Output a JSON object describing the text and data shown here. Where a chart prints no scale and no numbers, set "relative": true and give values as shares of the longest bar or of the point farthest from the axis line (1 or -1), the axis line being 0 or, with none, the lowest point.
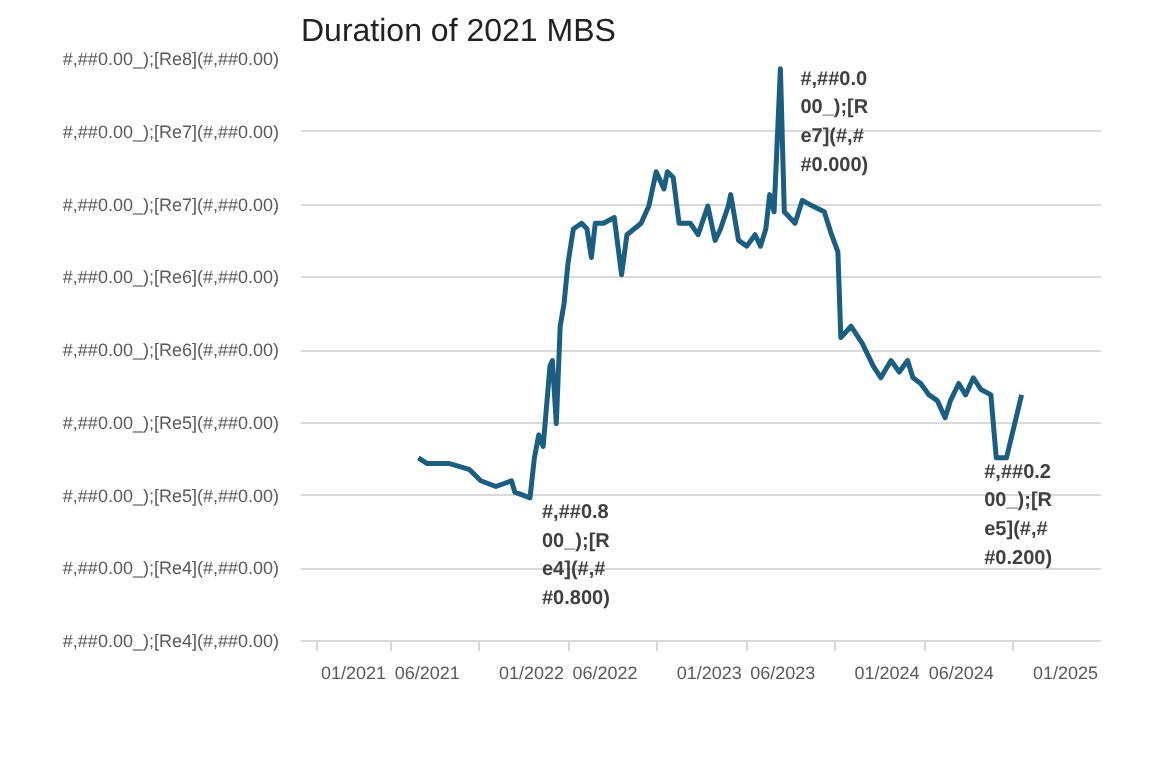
{
  "chart_data": {
    "type": "line",
    "title": "Duration of 2021 MBS",
    "relative": true,
    "grid": "y",
    "line_style": "solid",
    "marker": "none",
    "xlim": [
      "2020-09-15",
      "2025-03-15"
    ],
    "xticks": [
      {
        "value": "2021-01",
        "label": "01/2021"
      },
      {
        "value": "2021-06",
        "label": "06/2021"
      },
      {
        "value": "2022-01",
        "label": "01/2022"
      },
      {
        "value": "2022-06",
        "label": "06/2022"
      },
      {
        "value": "2023-01",
        "label": "01/2023"
      },
      {
        "value": "2023-06",
        "label": "06/2023"
      },
      {
        "value": "2024-01",
        "label": "01/2024"
      },
      {
        "value": "2024-06",
        "label": "06/2024"
      },
      {
        "value": "2025-01",
        "label": "01/2025"
      }
    ],
    "series": [
      {
        "color": "#1b5e80",
        "x": [
          "2021-05-14",
          "2021-06-01",
          "2021-07-17",
          "2021-08-26",
          "2021-09-19",
          "2021-10-20",
          "2021-11-21",
          "2021-11-28",
          "2021-12-29",
          "2022-01-07",
          "2022-01-16",
          "2022-01-25",
          "2022-02-08",
          "2022-02-13",
          "2022-02-21",
          "2022-03-01",
          "2022-03-09",
          "2022-03-17",
          "2022-03-28",
          "2022-04-14",
          "2022-04-25",
          "2022-05-04",
          "2022-05-12",
          "2022-05-29",
          "2022-06-20",
          "2022-07-05",
          "2022-07-16",
          "2022-08-14",
          "2022-08-30",
          "2022-09-14",
          "2022-09-30",
          "2022-10-07",
          "2022-10-19",
          "2022-10-31",
          "2022-11-23",
          "2022-12-09",
          "2022-12-29",
          "2023-01-13",
          "2023-01-24",
          "2023-02-09",
          "2023-02-14",
          "2023-03-02",
          "2023-03-19",
          "2023-04-05",
          "2023-04-16",
          "2023-04-27",
          "2023-05-05",
          "2023-05-14",
          "2023-05-27",
          "2023-06-04",
          "2023-06-26",
          "2023-07-11",
          "2023-08-01",
          "2023-08-25",
          "2023-09-09",
          "2023-09-22",
          "2023-09-28",
          "2023-10-19",
          "2023-11-11",
          "2023-12-04",
          "2023-12-19",
          "2024-01-09",
          "2024-01-26",
          "2024-02-12",
          "2024-02-23",
          "2024-03-10",
          "2024-03-27",
          "2024-04-13",
          "2024-04-29",
          "2024-05-10",
          "2024-05-27",
          "2024-06-10",
          "2024-06-26",
          "2024-07-11",
          "2024-08-01",
          "2024-08-12",
          "2024-09-02",
          "2024-10-03"
        ],
        "values": [
          0.32,
          0.31,
          0.31,
          0.3,
          0.28,
          0.27,
          0.28,
          0.26,
          0.25,
          0.32,
          0.36,
          0.34,
          0.48,
          0.49,
          0.38,
          0.55,
          0.59,
          0.66,
          0.72,
          0.73,
          0.72,
          0.67,
          0.73,
          0.73,
          0.74,
          0.64,
          0.71,
          0.73,
          0.76,
          0.82,
          0.79,
          0.82,
          0.81,
          0.73,
          0.73,
          0.71,
          0.76,
          0.7,
          0.72,
          0.76,
          0.78,
          0.7,
          0.69,
          0.71,
          0.69,
          0.72,
          0.78,
          0.75,
          1.0,
          0.75,
          0.73,
          0.77,
          0.76,
          0.75,
          0.71,
          0.68,
          0.53,
          0.55,
          0.52,
          0.48,
          0.46,
          0.49,
          0.47,
          0.49,
          0.46,
          0.45,
          0.43,
          0.42,
          0.39,
          0.42,
          0.45,
          0.43,
          0.46,
          0.44,
          0.43,
          0.32,
          0.32,
          0.43
        ]
      }
    ],
    "annotations": [
      "#,##0.00_);[Re8](#,##0.00)",
      "#,##0.00_);[Re7](#,##0.00)",
      "#,##0.00_);[Re7](#,##0.00)",
      "#,##0.00_);[Re6](#,##0.00)",
      "#,##0.00_);[Re6](#,##0.00)",
      "#,##0.00_);[Re5](#,##0.00)",
      "#,##0.00_);[Re5](#,##0.00)",
      "#,##0.00_);[Re4](#,##0.00)",
      "#,##0.00_);[Re4](#,##0.00)",
      {
        "text": "#,##0.800_);[Re4](#,##0.800)",
        "x": "2021-12-29",
        "y": 0.25
      },
      {
        "text": "#,##0.000_);[Re7](#,##0.000)",
        "x": "2023-05-27",
        "y": 1.0
      },
      {
        "text": "#,##0.200_);[Re5](#,##0.200)",
        "x": "2024-08-12",
        "y": 0.32
      }
    ]
  }
}
